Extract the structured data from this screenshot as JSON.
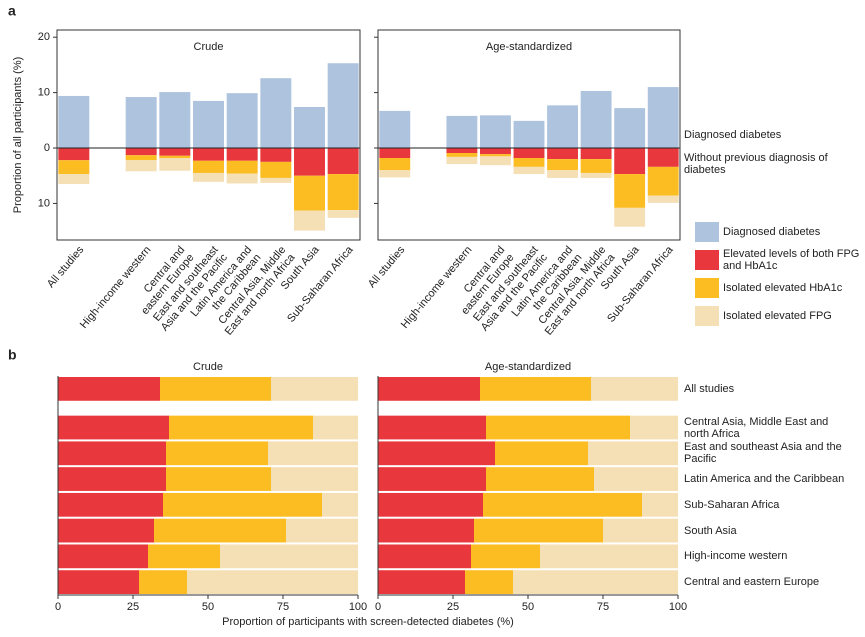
{
  "panel_labels": [
    "a",
    "b"
  ],
  "chart_data": [
    {
      "type": "diverging_bar",
      "title": "Crude",
      "ylabel": "Proportion of all participants (%)",
      "categories": [
        "All studies",
        "High-income western",
        "Central and\neastern Europe",
        "East and southeast\nAsia and the Pacific",
        "Latin America and\nthe Caribbean",
        "Central Asia, Middle\nEast and north Africa",
        "South Asia",
        "Sub-Saharan Africa"
      ],
      "series": [
        {
          "name": "Diagnosed diabetes",
          "color": "#adc3de",
          "values": [
            9.4,
            9.2,
            10.1,
            8.5,
            9.9,
            12.6,
            7.4,
            15.3
          ]
        },
        {
          "name": "Elevated levels of both FPG\nand HbA1c",
          "color": "#e8383d",
          "values": [
            -2.2,
            -1.3,
            -1.4,
            -2.3,
            -2.3,
            -2.5,
            -5.0,
            -4.7
          ]
        },
        {
          "name": "Isolated elevated HbA1c",
          "color": "#fbbd22",
          "values": [
            -2.5,
            -0.9,
            -0.4,
            -2.2,
            -2.3,
            -2.9,
            -6.3,
            -6.5
          ]
        },
        {
          "name": "Isolated elevated FPG",
          "color": "#f5dfb5",
          "values": [
            -1.8,
            -2.0,
            -2.3,
            -1.6,
            -1.8,
            -0.9,
            -3.6,
            -1.4
          ]
        }
      ],
      "ylim": [
        -16.6,
        21.3
      ],
      "yticks": [
        20,
        10,
        0,
        {
          "value": -10,
          "label": "10"
        }
      ]
    },
    {
      "type": "diverging_bar",
      "title": "Age-standardized",
      "annotations": [
        "Diagnosed diabetes",
        "Without previous diagnosis of\ndiabetes"
      ],
      "categories": [
        "All studies",
        "High-income western",
        "Central and\neastern Europe",
        "East and southeast\nAsia and the Pacific",
        "Latin America and\nthe Caribbean",
        "Central Asia, Middle\nEast and north Africa",
        "South Asia",
        "Sub-Saharan Africa"
      ],
      "series": [
        {
          "color": "#adc3de",
          "values": [
            6.7,
            5.8,
            5.9,
            4.9,
            7.7,
            10.3,
            7.2,
            11.0
          ]
        },
        {
          "color": "#e8383d",
          "values": [
            -1.8,
            -0.9,
            -1.1,
            -1.8,
            -2.0,
            -2.0,
            -4.7,
            -3.4
          ]
        },
        {
          "color": "#fbbd22",
          "values": [
            -2.2,
            -0.7,
            -0.4,
            -1.6,
            -2.0,
            -2.5,
            -6.1,
            -5.2
          ]
        },
        {
          "color": "#f5dfb5",
          "values": [
            -1.3,
            -1.3,
            -1.6,
            -1.3,
            -1.4,
            -0.9,
            -3.4,
            -1.3
          ]
        }
      ],
      "ylim": [
        -16.6,
        21.3
      ],
      "yticks": [
        20,
        10,
        0,
        -10
      ]
    },
    {
      "type": "hbar100",
      "title": "Crude",
      "xlabel": "Proportion of participants with screen-detected diabetes (%)",
      "series": [
        {
          "color": "#e8383d",
          "values": [
            34,
            37,
            36,
            36,
            35,
            32,
            30,
            27
          ]
        },
        {
          "color": "#fbbd22",
          "values": [
            37,
            48,
            34,
            35,
            53,
            44,
            24,
            16
          ]
        },
        {
          "color": "#f5dfb5",
          "values": [
            29,
            15,
            30,
            29,
            12,
            24,
            46,
            57
          ]
        }
      ],
      "xlim": [
        0,
        100
      ],
      "xticks": [
        0,
        25,
        50,
        75,
        100
      ]
    },
    {
      "type": "hbar100",
      "title": "Age-standardized",
      "categories": [
        "All studies",
        "Central Asia, Middle East and\nnorth Africa",
        "East and southeast Asia and the\nPacific",
        "Latin America and the Caribbean",
        "Sub-Saharan Africa",
        "South Asia",
        "High-income western",
        "Central and eastern Europe"
      ],
      "series": [
        {
          "color": "#e8383d",
          "values": [
            34,
            36,
            39,
            36,
            35,
            32,
            31,
            29
          ]
        },
        {
          "color": "#fbbd22",
          "values": [
            37,
            48,
            31,
            36,
            53,
            43,
            23,
            16
          ]
        },
        {
          "color": "#f5dfb5",
          "values": [
            29,
            16,
            30,
            28,
            12,
            25,
            46,
            55
          ]
        }
      ],
      "xlim": [
        0,
        100
      ],
      "xticks": [
        0,
        25,
        50,
        75,
        100
      ]
    }
  ]
}
